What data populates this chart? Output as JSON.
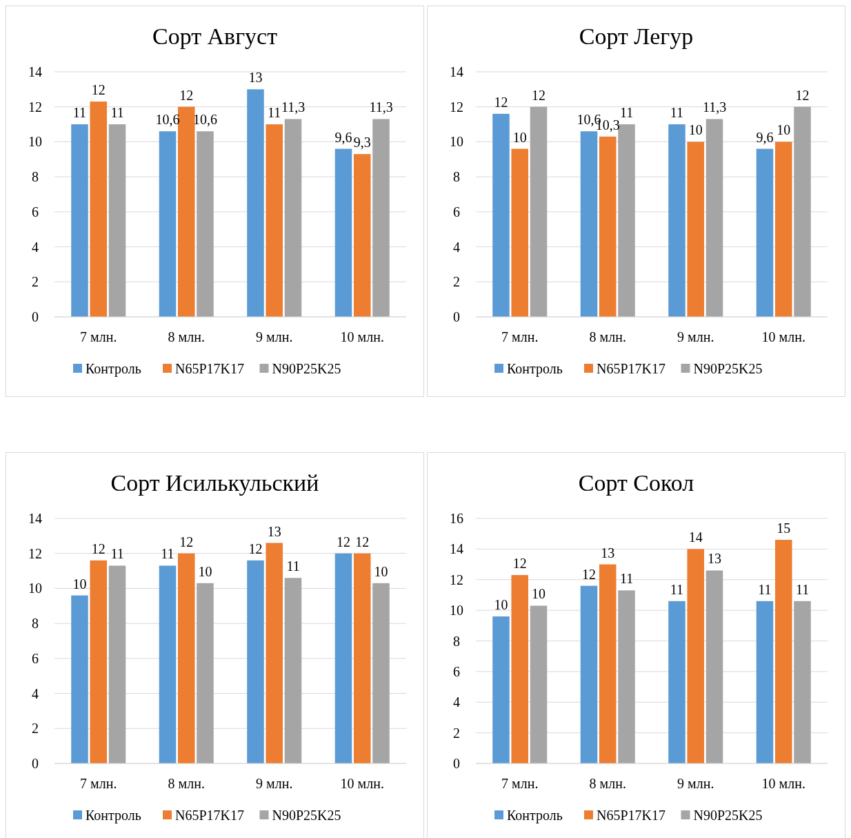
{
  "chart_data": [
    {
      "type": "bar",
      "title": "Сорт Август",
      "categories": [
        "7 млн.",
        "8 млн.",
        "9 млн.",
        "10 млн."
      ],
      "ylim": [
        0,
        14
      ],
      "yticks": [
        0,
        2,
        4,
        6,
        8,
        10,
        12,
        14
      ],
      "grid": "y",
      "legend": "bottom",
      "series": [
        {
          "name": "Контроль",
          "color": "#5b9bd5",
          "values": [
            11.0,
            10.6,
            13.0,
            9.6
          ],
          "value_labels": [
            "11",
            "10,6",
            "13",
            "9,6"
          ]
        },
        {
          "name": "N65P17K17",
          "color": "#ed7d31",
          "values": [
            12.3,
            12.0,
            11.0,
            9.3
          ],
          "value_labels": [
            "12",
            "12",
            "11",
            "9,3"
          ]
        },
        {
          "name": "N90P25K25",
          "color": "#a5a5a5",
          "values": [
            11.0,
            10.6,
            11.3,
            11.3
          ],
          "value_labels": [
            "11",
            "10,6",
            "11,3",
            "11,3"
          ]
        }
      ]
    },
    {
      "type": "bar",
      "title": "Сорт Легур",
      "categories": [
        "7 млн.",
        "8 млн.",
        "9 млн.",
        "10 млн."
      ],
      "ylim": [
        0,
        14
      ],
      "yticks": [
        0,
        2,
        4,
        6,
        8,
        10,
        12,
        14
      ],
      "grid": "y",
      "legend": "bottom",
      "series": [
        {
          "name": "Контроль",
          "color": "#5b9bd5",
          "values": [
            11.6,
            10.6,
            11.0,
            9.6
          ],
          "value_labels": [
            "12",
            "10,6",
            "11",
            "9,6"
          ]
        },
        {
          "name": "N65P17K17",
          "color": "#ed7d31",
          "values": [
            9.6,
            10.3,
            10.0,
            10.0
          ],
          "value_labels": [
            "10",
            "10,3",
            "10",
            "10"
          ]
        },
        {
          "name": "N90P25K25",
          "color": "#a5a5a5",
          "values": [
            12.0,
            11.0,
            11.3,
            12.0
          ],
          "value_labels": [
            "12",
            "11",
            "11,3",
            "12"
          ]
        }
      ]
    },
    {
      "type": "bar",
      "title": "Сорт Исилькульский",
      "categories": [
        "7 млн.",
        "8 млн.",
        "9 млн.",
        "10 млн."
      ],
      "ylim": [
        0,
        14
      ],
      "yticks": [
        0,
        2,
        4,
        6,
        8,
        10,
        12,
        14
      ],
      "grid": "y",
      "legend": "bottom",
      "series": [
        {
          "name": "Контроль",
          "color": "#5b9bd5",
          "values": [
            9.6,
            11.3,
            11.6,
            12.0
          ],
          "value_labels": [
            "10",
            "11",
            "12",
            "12"
          ]
        },
        {
          "name": "N65P17K17",
          "color": "#ed7d31",
          "values": [
            11.6,
            12.0,
            12.6,
            12.0
          ],
          "value_labels": [
            "12",
            "12",
            "13",
            "12"
          ]
        },
        {
          "name": "N90P25K25",
          "color": "#a5a5a5",
          "values": [
            11.3,
            10.3,
            10.6,
            10.3
          ],
          "value_labels": [
            "11",
            "10",
            "11",
            "10"
          ]
        }
      ]
    },
    {
      "type": "bar",
      "title": "Сорт Сокол",
      "categories": [
        "7 млн.",
        "8 млн.",
        "9 млн.",
        "10 млн."
      ],
      "ylim": [
        0,
        16
      ],
      "yticks": [
        0,
        2,
        4,
        6,
        8,
        10,
        12,
        14,
        16
      ],
      "grid": "y",
      "legend": "bottom",
      "series": [
        {
          "name": "Контроль",
          "color": "#5b9bd5",
          "values": [
            9.6,
            11.6,
            10.6,
            10.6
          ],
          "value_labels": [
            "10",
            "12",
            "11",
            "11"
          ]
        },
        {
          "name": "N65P17K17",
          "color": "#ed7d31",
          "values": [
            12.3,
            13.0,
            14.0,
            14.6
          ],
          "value_labels": [
            "12",
            "13",
            "14",
            "15"
          ]
        },
        {
          "name": "N90P25K25",
          "color": "#a5a5a5",
          "values": [
            10.3,
            11.3,
            12.6,
            10.6
          ],
          "value_labels": [
            "10",
            "11",
            "13",
            "11"
          ]
        }
      ]
    }
  ]
}
